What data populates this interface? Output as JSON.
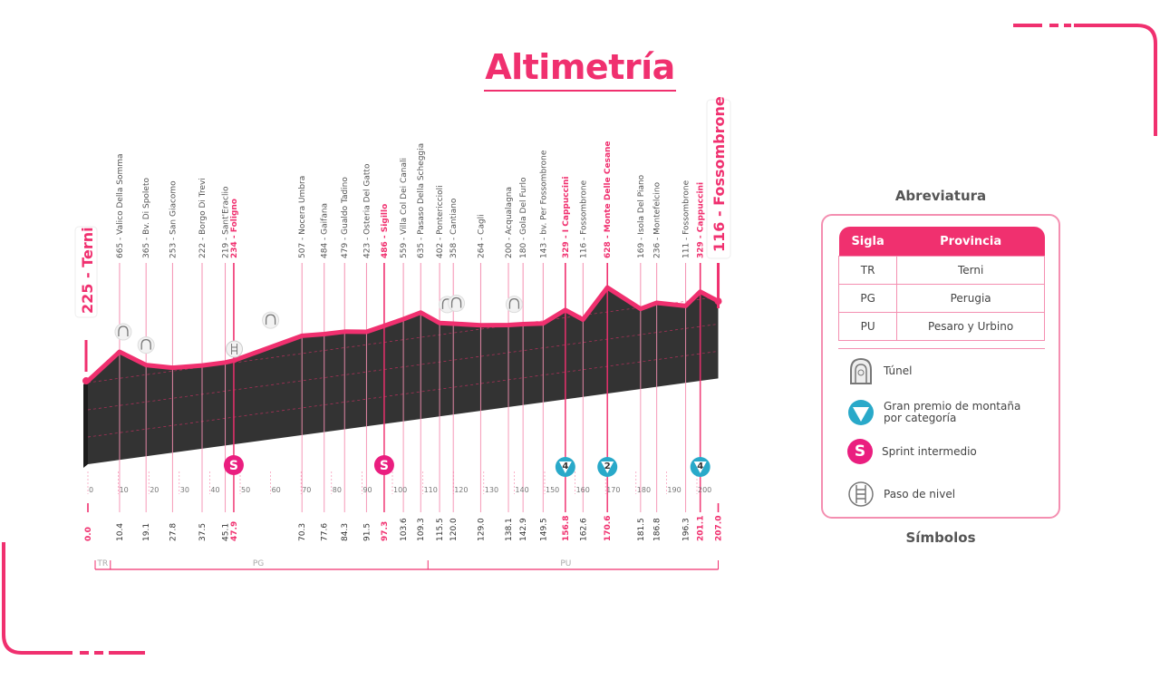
{
  "title": "Altimetría",
  "colors": {
    "accent": "#f0306f",
    "profile": "#333333",
    "gpm": "#29a9c9",
    "sprint": "#ea1e7f"
  },
  "chart_data": {
    "type": "area",
    "xlabel": "",
    "ylabel": "",
    "start": {
      "altitude": 225,
      "name": "Terni",
      "label": "225 - Terni"
    },
    "finish": {
      "altitude": 116,
      "name": "Fossombrone",
      "label": "116 - Fossombrone"
    },
    "km_ticks": [
      0,
      10,
      20,
      30,
      40,
      50,
      60,
      70,
      80,
      90,
      100,
      110,
      120,
      130,
      140,
      150,
      160,
      170,
      180,
      190,
      200
    ],
    "xlim": [
      0,
      207
    ],
    "waypoints": [
      {
        "km": "0.0",
        "alt": 225,
        "name": "Terni",
        "highlight": true,
        "endpoint": true
      },
      {
        "km": "10.4",
        "alt": 665,
        "name": "Valico Della Somma"
      },
      {
        "km": "19.1",
        "alt": 365,
        "name": "Bv. Di Spoleto"
      },
      {
        "km": "27.8",
        "alt": 253,
        "name": "San Giacomo"
      },
      {
        "km": "37.5",
        "alt": 222,
        "name": "Borgo Di Trevi"
      },
      {
        "km": "45.1",
        "alt": 219,
        "name": "Sant'Eraclio"
      },
      {
        "km": "47.9",
        "alt": 234,
        "name": "Foligno",
        "highlight": true
      },
      {
        "km": "70.3",
        "alt": 507,
        "name": "Nocera Umbra"
      },
      {
        "km": "77.6",
        "alt": 484,
        "name": "Gaifana"
      },
      {
        "km": "84.3",
        "alt": 479,
        "name": "Gualdo Tadino"
      },
      {
        "km": "91.5",
        "alt": 423,
        "name": "Osteria Del Gatto"
      },
      {
        "km": "97.3",
        "alt": 486,
        "name": "Sigillo",
        "highlight": true
      },
      {
        "km": "103.6",
        "alt": 559,
        "name": "Villa Col Dei Canali"
      },
      {
        "km": "109.3",
        "alt": 635,
        "name": "Pasaso Della Scheggia"
      },
      {
        "km": "115.5",
        "alt": 402,
        "name": "Pontericcioli"
      },
      {
        "km": "120.0",
        "alt": 358,
        "name": "Cantiano"
      },
      {
        "km": "129.0",
        "alt": 264,
        "name": "Cagli"
      },
      {
        "km": "138.1",
        "alt": 200,
        "name": "Acqualagna"
      },
      {
        "km": "142.9",
        "alt": 180,
        "name": "Gola Del Furlo"
      },
      {
        "km": "149.5",
        "alt": 143,
        "name": "bv. Per Fossombrone"
      },
      {
        "km": "156.8",
        "alt": 329,
        "name": "I Cappuccini",
        "highlight": true
      },
      {
        "km": "162.6",
        "alt": 116,
        "name": "Fossombrone"
      },
      {
        "km": "170.6",
        "alt": 628,
        "name": "Monte Delle Cesane",
        "highlight": true
      },
      {
        "km": "181.5",
        "alt": 169,
        "name": "Isola Del Piano"
      },
      {
        "km": "186.8",
        "alt": 236,
        "name": "Montefelcino"
      },
      {
        "km": "196.3",
        "alt": 111,
        "name": "Fossombrone"
      },
      {
        "km": "201.1",
        "alt": 329,
        "name": "Cappuccini",
        "highlight": true
      },
      {
        "km": "207.0",
        "alt": 116,
        "name": "Fossombrone",
        "highlight": true,
        "endpoint": true
      }
    ],
    "sprints": [
      {
        "km": 47.9,
        "label": "S"
      },
      {
        "km": 97.3,
        "label": "S"
      }
    ],
    "gpm": [
      {
        "km": 156.8,
        "category": "4"
      },
      {
        "km": 170.6,
        "category": "2"
      },
      {
        "km": 201.1,
        "category": "4"
      }
    ],
    "tunnels": [
      10.4,
      19.1,
      60,
      118,
      121,
      140
    ],
    "level_crossings": [
      45.1
    ],
    "provinces": [
      {
        "code": "TR",
        "from": 0,
        "to": 5
      },
      {
        "code": "PG",
        "from": 5,
        "to": 109.3
      },
      {
        "code": "PU",
        "from": 109.3,
        "to": 207
      }
    ]
  },
  "legend": {
    "abbr_title": "Abreviatura",
    "headers": [
      "Sigla",
      "Provincia"
    ],
    "rows": [
      [
        "TR",
        "Terni"
      ],
      [
        "PG",
        "Perugia"
      ],
      [
        "PU",
        "Pesaro y Urbino"
      ]
    ],
    "symbols_title": "Símbolos",
    "symbols": {
      "tunnel": "Túnel",
      "gpm_1": "Gran premio de montaña",
      "gpm_2": "por categoría",
      "sprint": "Sprint intermedio",
      "sprint_glyph": "S",
      "crossing": "Paso de nivel"
    }
  }
}
